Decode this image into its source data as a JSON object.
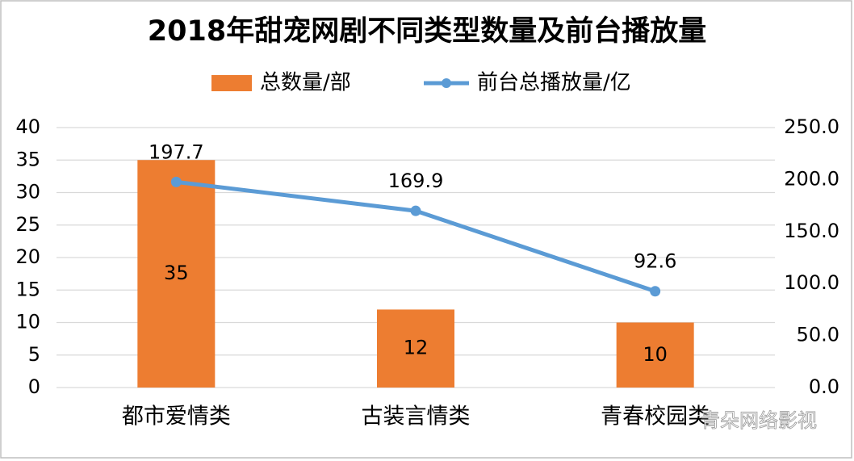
{
  "chart_data": {
    "type": "bar",
    "title": "2018年甜宠网剧不同类型数量及前台播放量",
    "categories": [
      "都市爱情类",
      "古装言情类",
      "青春校园类"
    ],
    "series": [
      {
        "name": "总数量/部",
        "type": "bar",
        "color": "#ED7D31",
        "values": [
          35,
          12,
          10
        ],
        "axis": "y"
      },
      {
        "name": "前台总播放量/亿",
        "type": "line",
        "color": "#5B9BD5",
        "values": [
          197.7,
          169.9,
          92.6
        ],
        "axis": "y2"
      }
    ],
    "ylim": [
      0,
      40
    ],
    "yticks": [
      0,
      5,
      10,
      15,
      20,
      25,
      30,
      35,
      40
    ],
    "y2lim": [
      0,
      250
    ],
    "y2ticks": [
      {
        "value": 0,
        "label": "0.0"
      },
      {
        "value": 50,
        "label": "50.0"
      },
      {
        "value": 100,
        "label": "100.0"
      },
      {
        "value": 150,
        "label": "150.0"
      },
      {
        "value": 200,
        "label": "200.0"
      },
      {
        "value": 250,
        "label": "250.0"
      }
    ],
    "grid": true,
    "legend": "top",
    "watermark": "青朵网络影视"
  }
}
